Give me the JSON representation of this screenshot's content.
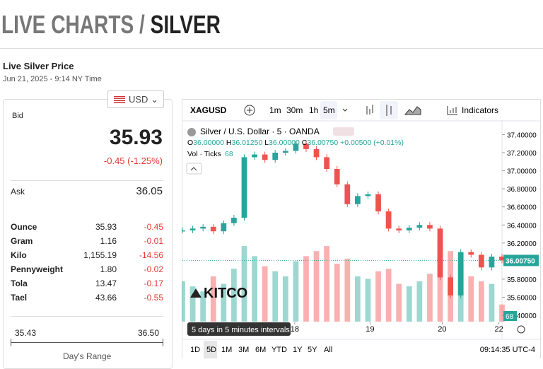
{
  "header": {
    "title_part1": "LIVE CHARTS /",
    "title_part2": "SILVER",
    "subtitle": "Live Silver Price",
    "date": "Jun 21, 2025 - 9:14 NY Time"
  },
  "quote": {
    "currency": "USD",
    "bid_label": "Bid",
    "bid": "35.93",
    "change": "-0.45 (-1.25%)",
    "ask_label": "Ask",
    "ask": "36.05",
    "units": [
      [
        "Ounce",
        "35.93",
        "-0.45"
      ],
      [
        "Gram",
        "1.16",
        "-0.01"
      ],
      [
        "Kilo",
        "1,155.19",
        "-14.56"
      ],
      [
        "Pennyweight",
        "1.80",
        "-0.02"
      ],
      [
        "Tola",
        "13.47",
        "-0.17"
      ],
      [
        "Tael",
        "43.66",
        "-0.55"
      ]
    ],
    "range_low": "35.43",
    "range_high": "36.50",
    "range_label": "Day's Range"
  },
  "toolbar": {
    "symbol": "XAGUSD",
    "intervals": [
      "1m",
      "30m",
      "1h",
      "5m"
    ],
    "indicators": "Indicators"
  },
  "legend": {
    "name": "Silver / U.S. Dollar · 5 · OANDA",
    "open_label": "O",
    "open": "36.00000",
    "high_label": "H",
    "high": "36.01250",
    "low_label": "L",
    "low": "36.00000",
    "close_label": "C",
    "close": "36.00750",
    "change": "+0.00500 (+0.01%)",
    "volume_label": "Vol · Ticks",
    "volume_value": "68"
  },
  "brand": "KITCO",
  "tooltip": "5 days in 5 minutes intervals",
  "ranges": [
    "1D",
    "5D",
    "1M",
    "3M",
    "6M",
    "YTD",
    "1Y",
    "5Y",
    "All"
  ],
  "time": "09:14:35 UTC-4",
  "chart_data": {
    "type": "candlestick",
    "values": [
      36.34,
      36.36,
      36.38,
      36.33,
      36.42,
      36.48,
      37.15,
      37.18,
      37.12,
      37.2,
      37.22,
      37.3,
      37.24,
      37.15,
      37.02,
      36.85,
      36.63,
      36.72,
      36.74,
      36.55,
      36.36,
      36.34,
      36.37,
      36.4,
      36.36,
      35.82,
      35.62,
      36.1,
      36.07,
      35.93,
      36.05,
      36.0075
    ],
    "volume": [
      160,
      140,
      120,
      180,
      150,
      210,
      300,
      260,
      220,
      200,
      180,
      240,
      260,
      280,
      300,
      230,
      250,
      180,
      170,
      200,
      210,
      150,
      140,
      160,
      190,
      320,
      280,
      230,
      180,
      160,
      150,
      68
    ],
    "volume_lim": [
      0,
      800
    ],
    "up_color": "#26a69a",
    "down_color": "#ef5350",
    "xlim": [
      0,
      31
    ],
    "xticks": [
      {
        "value": 10.9,
        "label": "18"
      },
      {
        "value": 18.2,
        "label": "19"
      },
      {
        "value": 25.2,
        "label": "20"
      },
      {
        "value": 30.7,
        "label": "22"
      }
    ],
    "ylim": [
      35.33,
      37.56
    ],
    "yticks": [
      {
        "value": 35.4,
        "label": "35.40000"
      },
      {
        "value": 35.6,
        "label": "35.60000"
      },
      {
        "value": 35.8,
        "label": "35.80000"
      },
      {
        "value": 36.2,
        "label": "36.20000"
      },
      {
        "value": 36.4,
        "label": "36.40000"
      },
      {
        "value": 36.6,
        "label": "36.60000"
      },
      {
        "value": 36.8,
        "label": "36.80000"
      },
      {
        "value": 37.0,
        "label": "37.00000"
      },
      {
        "value": 37.2,
        "label": "37.20000"
      },
      {
        "value": 37.4,
        "label": "37.40000"
      }
    ],
    "last_price": {
      "value": 36.0075,
      "label": "36.00750"
    }
  }
}
